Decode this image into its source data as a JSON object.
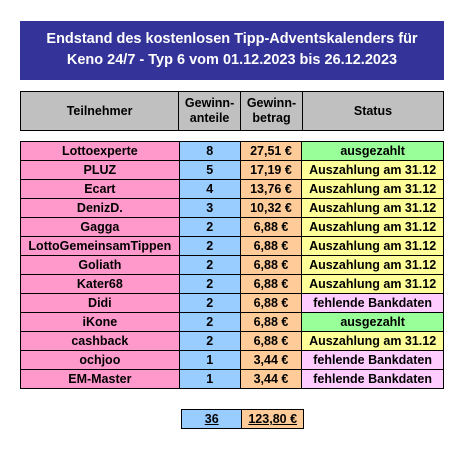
{
  "banner": {
    "line1": "Endstand des kostenlosen Tipp-Adventskalenders für",
    "line2": "Keno 24/7 - Typ 6 vom 01.12.2023 bis 26.12.2023"
  },
  "headers": {
    "name": "Teilnehmer",
    "anteile_1": "Gewinn-",
    "anteile_2": "anteile",
    "betrag_1": "Gewinn-",
    "betrag_2": "betrag",
    "status": "Status"
  },
  "rows": [
    {
      "name": "Lottoexperte",
      "anteile": "8",
      "betrag": "27,51 €",
      "status": "ausgezahlt",
      "status_type": "paid"
    },
    {
      "name": "PLUZ",
      "anteile": "5",
      "betrag": "17,19 €",
      "status": "Auszahlung am 31.12",
      "status_type": "open"
    },
    {
      "name": "Ecart",
      "anteile": "4",
      "betrag": "13,76 €",
      "status": "Auszahlung am 31.12",
      "status_type": "open"
    },
    {
      "name": "DenizD.",
      "anteile": "3",
      "betrag": "10,32 €",
      "status": "Auszahlung am 31.12",
      "status_type": "open"
    },
    {
      "name": "Gagga",
      "anteile": "2",
      "betrag": "6,88 €",
      "status": "Auszahlung am 31.12",
      "status_type": "open"
    },
    {
      "name": "LottoGemeinsamTippen",
      "anteile": "2",
      "betrag": "6,88 €",
      "status": "Auszahlung am 31.12",
      "status_type": "open"
    },
    {
      "name": "Goliath",
      "anteile": "2",
      "betrag": "6,88 €",
      "status": "Auszahlung am 31.12",
      "status_type": "open"
    },
    {
      "name": "Kater68",
      "anteile": "2",
      "betrag": "6,88 €",
      "status": "Auszahlung am 31.12",
      "status_type": "open"
    },
    {
      "name": "Didi",
      "anteile": "2",
      "betrag": "6,88 €",
      "status": "fehlende Bankdaten",
      "status_type": "bank"
    },
    {
      "name": "iKone",
      "anteile": "2",
      "betrag": "6,88 €",
      "status": "ausgezahlt",
      "status_type": "paid"
    },
    {
      "name": "cashback",
      "anteile": "2",
      "betrag": "6,88 €",
      "status": "Auszahlung am 31.12",
      "status_type": "open"
    },
    {
      "name": "ochjoo",
      "anteile": "1",
      "betrag": "3,44 €",
      "status": "fehlende Bankdaten",
      "status_type": "bank"
    },
    {
      "name": "EM-Master",
      "anteile": "1",
      "betrag": "3,44 €",
      "status": "fehlende Bankdaten",
      "status_type": "bank"
    }
  ],
  "totals": {
    "anteile": "36",
    "betrag": "123,80 €"
  },
  "colors": {
    "banner": "#333399",
    "header": "#c0c0c0",
    "name": "#ff99cc",
    "anteile": "#99ccff",
    "betrag": "#ffcc99",
    "paid": "#99ff99",
    "open": "#ffff99",
    "bank": "#ffccff"
  }
}
